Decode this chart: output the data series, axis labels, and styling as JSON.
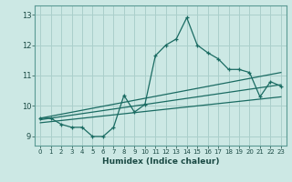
{
  "xlabel": "Humidex (Indice chaleur)",
  "bg_color": "#cce8e4",
  "grid_color": "#aacfcb",
  "line_color": "#1a6b62",
  "xlim": [
    -0.5,
    23.5
  ],
  "ylim": [
    8.7,
    13.3
  ],
  "yticks": [
    9,
    10,
    11,
    12,
    13
  ],
  "xticks": [
    0,
    1,
    2,
    3,
    4,
    5,
    6,
    7,
    8,
    9,
    10,
    11,
    12,
    13,
    14,
    15,
    16,
    17,
    18,
    19,
    20,
    21,
    22,
    23
  ],
  "series1_x": [
    0,
    1,
    2,
    3,
    4,
    5,
    6,
    7,
    8,
    9,
    10,
    11,
    12,
    13,
    14,
    15,
    16,
    17,
    18,
    19,
    20,
    21,
    22,
    23
  ],
  "series1_y": [
    9.6,
    9.6,
    9.4,
    9.3,
    9.3,
    9.0,
    9.0,
    9.3,
    10.35,
    9.8,
    10.05,
    11.65,
    12.0,
    12.2,
    12.9,
    12.0,
    11.75,
    11.55,
    11.2,
    11.2,
    11.1,
    10.3,
    10.8,
    10.65
  ],
  "series2_x": [
    0,
    23
  ],
  "series2_y": [
    9.6,
    11.1
  ],
  "series3_x": [
    0,
    23
  ],
  "series3_y": [
    9.55,
    10.7
  ],
  "series4_x": [
    0,
    23
  ],
  "series4_y": [
    9.45,
    10.3
  ]
}
